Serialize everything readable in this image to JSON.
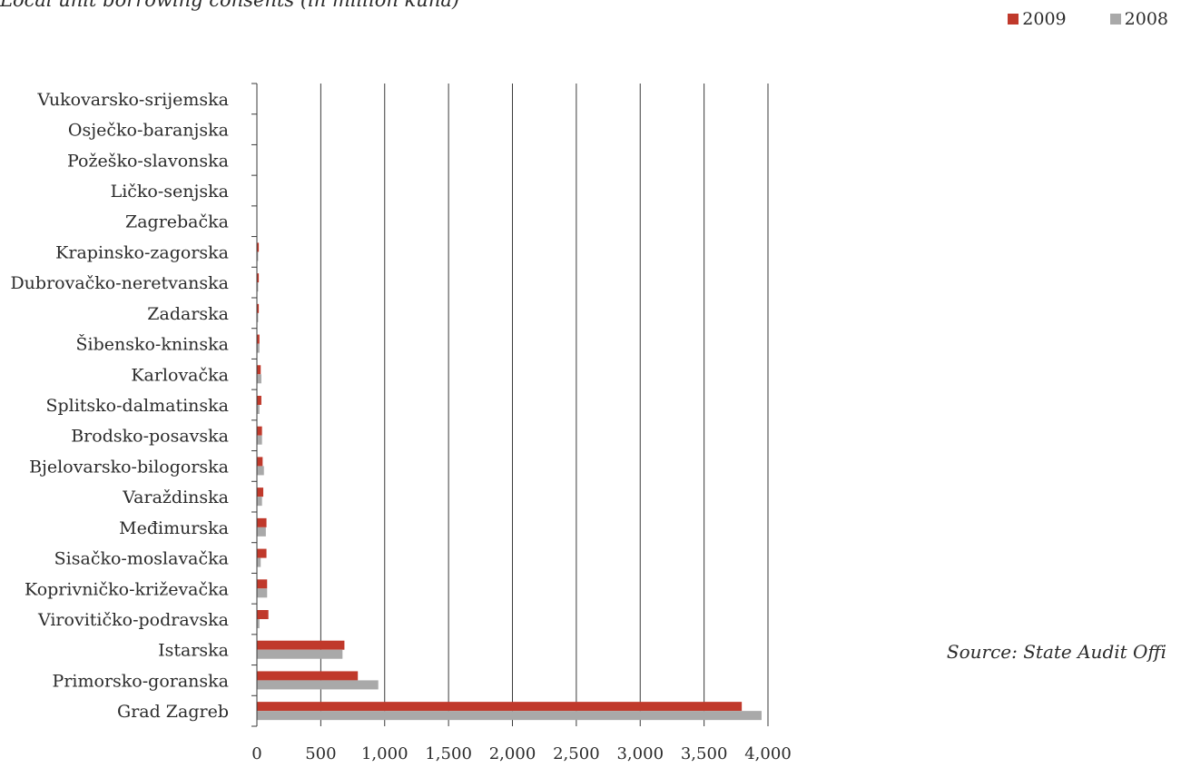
{
  "chart_data": {
    "type": "bar",
    "orientation": "horizontal",
    "title": "Local unit borrowing consents (in million kuna)",
    "source": "Source: State Audit Offi",
    "xlim": [
      0,
      4000
    ],
    "xticks": [
      0,
      500,
      1000,
      1500,
      2000,
      2500,
      3000,
      3500,
      4000
    ],
    "xtick_labels": [
      "0",
      "500",
      "1,000",
      "1,500",
      "2,000",
      "2,500",
      "3,000",
      "3,500",
      "4,000"
    ],
    "grid": "vertical",
    "legend_position": "top-right",
    "categories": [
      "Vukovarsko-srijemska",
      "Osječko-baranjska",
      "Požeško-slavonska",
      "Ličko-senjska",
      "Zagrebačka",
      "Krapinsko-zagorska",
      "Dubrovačko-neretvanska",
      "Zadarska",
      "Šibensko-kninska",
      "Karlovačka",
      "Splitsko-dalmatinska",
      "Brodsko-posavska",
      "Bjelovarsko-bilogorska",
      "Varaždinska",
      "Međimurska",
      "Sisačko-moslavačka",
      "Koprivničko-križevačka",
      "Virovitičko-podravska",
      "Istarska",
      "Primorsko-goranska",
      "Grad Zagreb"
    ],
    "series": [
      {
        "name": "2009",
        "color": "#c0392b",
        "values": [
          0,
          0,
          0,
          0,
          0,
          15,
          15,
          15,
          20,
          30,
          35,
          40,
          45,
          50,
          75,
          75,
          80,
          90,
          685,
          790,
          3795
        ]
      },
      {
        "name": "2008",
        "color": "#a9a9a9",
        "values": [
          0,
          0,
          0,
          0,
          0,
          10,
          10,
          10,
          20,
          35,
          20,
          40,
          55,
          40,
          70,
          30,
          80,
          20,
          670,
          950,
          3950
        ]
      }
    ]
  }
}
